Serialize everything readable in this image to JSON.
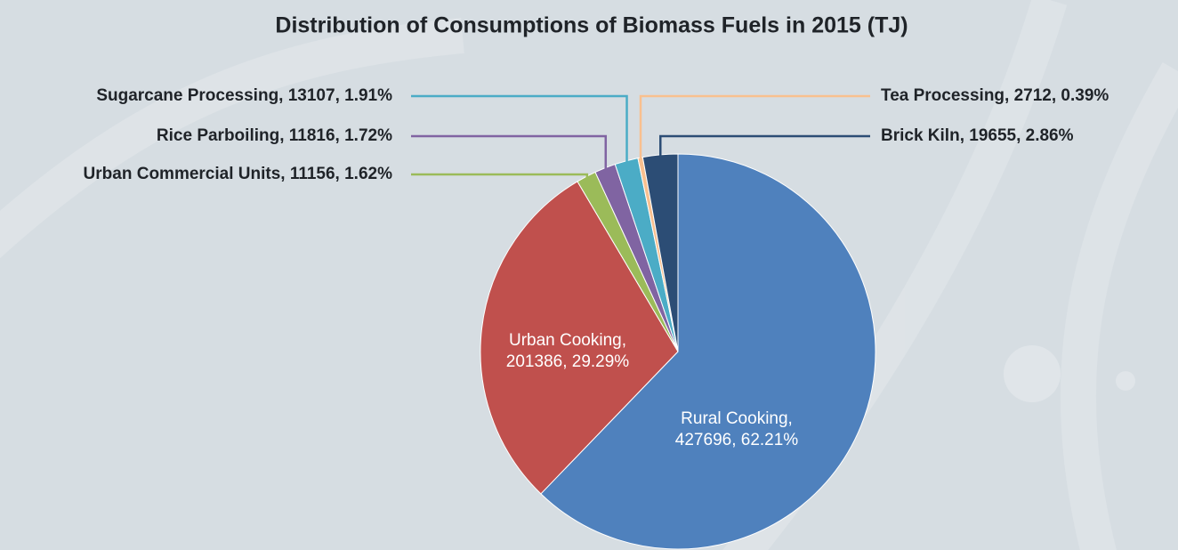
{
  "chart_data": {
    "type": "pie",
    "title": "Distribution of Consumptions of Biomass Fuels in 2015 (TJ)",
    "values": [
      427696,
      201386,
      11156,
      11816,
      13107,
      2712,
      19655
    ],
    "percents": [
      62.21,
      29.29,
      1.62,
      1.72,
      1.91,
      0.39,
      2.86
    ],
    "value_labels": [
      "Rural Cooking, 427696, 62.21%",
      "Urban Cooking, 201386, 29.29%",
      "Urban Commercial Units, 11156, 1.62%",
      "Rice Parboiling, 11816, 1.72%",
      "Sugarcane Processing, 13107, 1.91%",
      "Tea Processing, 2712, 0.39%",
      "Brick Kiln, 19655, 2.86%"
    ],
    "colors": [
      "#4f81bd",
      "#c0504d",
      "#9bbb59",
      "#8064a2",
      "#4bacc6",
      "#f9c08f",
      "#2c4d75"
    ]
  }
}
